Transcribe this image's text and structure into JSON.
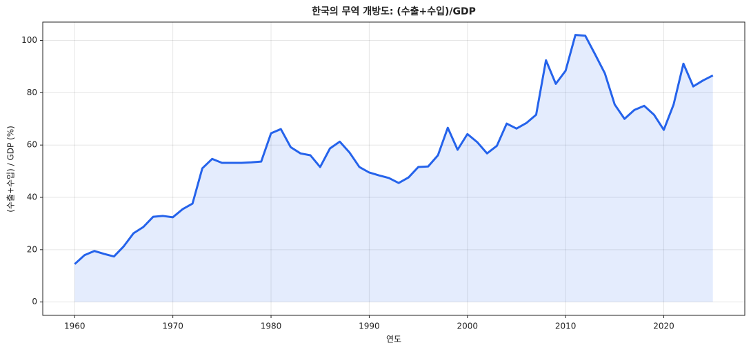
{
  "chart_data": {
    "type": "line",
    "title": "한국의 무역 개방도: (수출+수입)/GDP",
    "x_label": "연도",
    "y_label": "(수출+수입) / GDP (%)",
    "x": [
      1960,
      1961,
      1962,
      1963,
      1964,
      1965,
      1966,
      1967,
      1968,
      1969,
      1970,
      1971,
      1972,
      1973,
      1974,
      1975,
      1976,
      1977,
      1978,
      1979,
      1980,
      1981,
      1982,
      1983,
      1984,
      1985,
      1986,
      1987,
      1988,
      1989,
      1990,
      1991,
      1992,
      1993,
      1994,
      1995,
      1996,
      1997,
      1998,
      1999,
      2000,
      2001,
      2002,
      2003,
      2004,
      2005,
      2006,
      2007,
      2008,
      2009,
      2010,
      2011,
      2012,
      2013,
      2014,
      2015,
      2016,
      2017,
      2018,
      2019,
      2020,
      2021,
      2022,
      2023,
      2024,
      2025
    ],
    "series": [
      {
        "color": "#2563eb",
        "fill": true,
        "values": [
          14.5,
          17.9,
          19.5,
          18.4,
          17.4,
          21.3,
          26.3,
          28.7,
          32.6,
          32.9,
          32.4,
          35.5,
          37.6,
          51.1,
          54.7,
          53.2,
          53.2,
          53.2,
          53.4,
          53.7,
          64.5,
          66.1,
          59.2,
          56.8,
          56.1,
          51.6,
          58.7,
          61.3,
          57.1,
          51.6,
          49.5,
          48.4,
          47.4,
          45.5,
          47.6,
          51.6,
          51.8,
          56.1,
          66.6,
          58.2,
          64.2,
          61.1,
          56.8,
          59.7,
          68.2,
          66.3,
          68.4,
          71.6,
          92.4,
          83.4,
          88.4,
          102.1,
          101.8,
          94.7,
          87.4,
          75.5,
          70.0,
          73.4,
          75.0,
          71.6,
          65.8,
          75.5,
          91.1,
          82.4,
          84.7,
          86.6
        ]
      }
    ],
    "xlim": [
      1956.75,
      2028.25
    ],
    "xticks": [
      1960,
      1970,
      1980,
      1990,
      2000,
      2010,
      2020
    ],
    "ylim": [
      -5.1,
      107.0
    ],
    "yticks": [
      0,
      20,
      40,
      60,
      80,
      100
    ],
    "grid": true
  }
}
